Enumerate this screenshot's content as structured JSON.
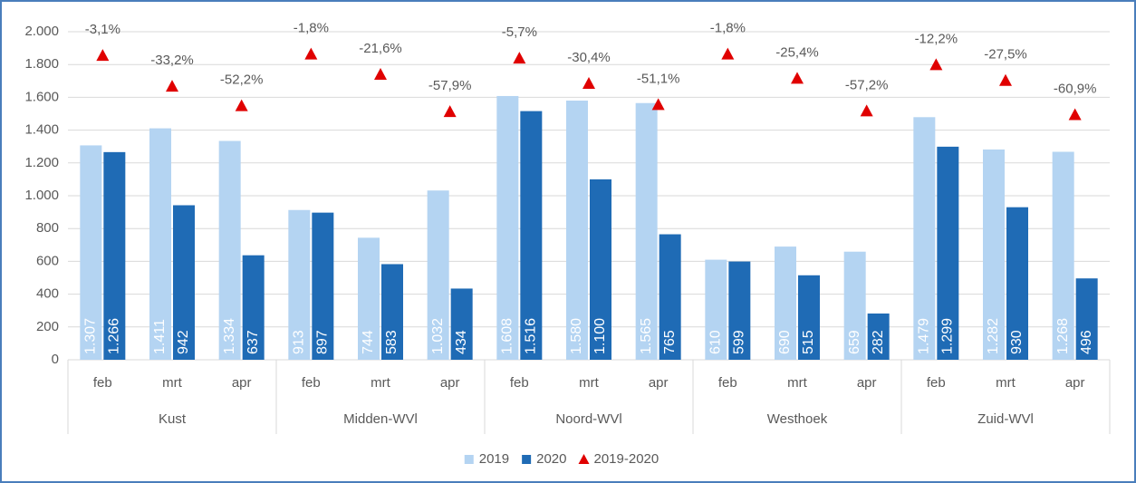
{
  "chart_data": {
    "type": "bar",
    "groups": [
      "Kust",
      "Midden-WVl",
      "Noord-WVl",
      "Westhoek",
      "Zuid-WVl"
    ],
    "categories": [
      "feb",
      "mrt",
      "apr",
      "feb",
      "mrt",
      "apr",
      "feb",
      "mrt",
      "apr",
      "feb",
      "mrt",
      "apr",
      "feb",
      "mrt",
      "apr"
    ],
    "series": [
      {
        "name": "2019",
        "color": "#b4d4f2",
        "values": [
          1307,
          1411,
          1334,
          913,
          744,
          1032,
          1608,
          1580,
          1565,
          610,
          690,
          659,
          1479,
          1282,
          1268
        ],
        "value_labels": [
          "1.307",
          "1.411",
          "1.334",
          "913",
          "744",
          "1.032",
          "1.608",
          "1.580",
          "1.565",
          "610",
          "690",
          "659",
          "1.479",
          "1.282",
          "1.268"
        ]
      },
      {
        "name": "2020",
        "color": "#1f6bb5",
        "values": [
          1266,
          942,
          637,
          897,
          583,
          434,
          1516,
          1100,
          765,
          599,
          515,
          282,
          1299,
          930,
          496
        ],
        "value_labels": [
          "1.266",
          "942",
          "637",
          "897",
          "583",
          "434",
          "1.516",
          "1.100",
          "765",
          "599",
          "515",
          "282",
          "1.299",
          "930",
          "496"
        ]
      },
      {
        "name": "2019-2020",
        "color": "#e00000",
        "axis": "y2",
        "marker": "triangle",
        "values": [
          -3.1,
          -33.2,
          -52.2,
          -1.8,
          -21.6,
          -57.9,
          -5.7,
          -30.4,
          -51.1,
          -1.8,
          -25.4,
          -57.2,
          -12.2,
          -27.5,
          -60.9
        ],
        "value_labels": [
          "-3,1%",
          "-33,2%",
          "-52,2%",
          "-1,8%",
          "-21,6%",
          "-57,9%",
          "-5,7%",
          "-30,4%",
          "-51,1%",
          "-1,8%",
          "-25,4%",
          "-57,2%",
          "-12,2%",
          "-27,5%",
          "-60,9%"
        ]
      }
    ],
    "ylim": [
      0,
      2000
    ],
    "yticks": [
      0,
      200,
      400,
      600,
      800,
      {
        "value": 1000,
        "label": "1.000"
      },
      {
        "value": 1200,
        "label": "1.200"
      },
      {
        "value": 1400,
        "label": "1.400"
      },
      {
        "value": 1600,
        "label": "1.600"
      },
      {
        "value": 1800,
        "label": "1.800"
      },
      {
        "value": 2000,
        "label": "2.000"
      }
    ],
    "y2lim": [
      -300,
      20
    ],
    "grid": true,
    "legend": "bottom"
  }
}
